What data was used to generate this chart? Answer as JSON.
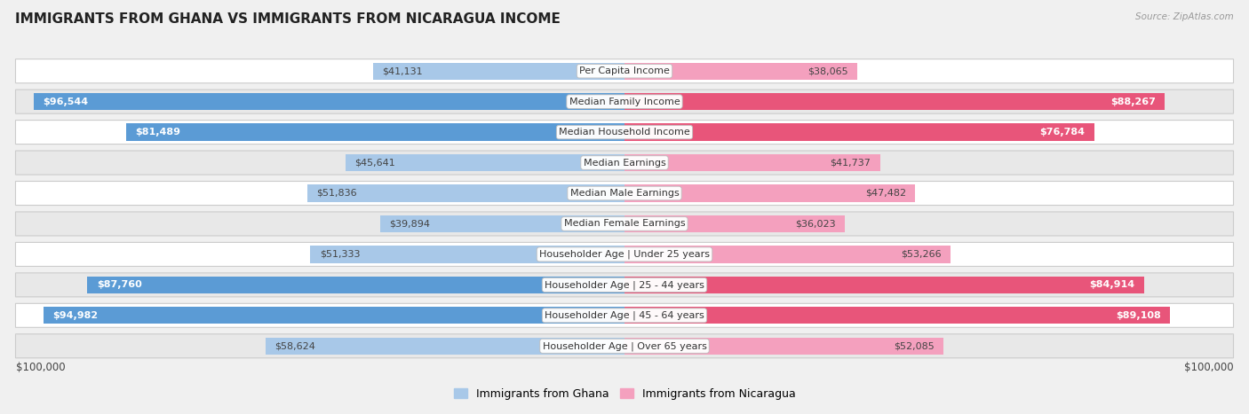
{
  "title": "IMMIGRANTS FROM GHANA VS IMMIGRANTS FROM NICARAGUA INCOME",
  "source": "Source: ZipAtlas.com",
  "categories": [
    "Per Capita Income",
    "Median Family Income",
    "Median Household Income",
    "Median Earnings",
    "Median Male Earnings",
    "Median Female Earnings",
    "Householder Age | Under 25 years",
    "Householder Age | 25 - 44 years",
    "Householder Age | 45 - 64 years",
    "Householder Age | Over 65 years"
  ],
  "ghana_values": [
    41131,
    96544,
    81489,
    45641,
    51836,
    39894,
    51333,
    87760,
    94982,
    58624
  ],
  "nicaragua_values": [
    38065,
    88267,
    76784,
    41737,
    47482,
    36023,
    53266,
    84914,
    89108,
    52085
  ],
  "ghana_labels": [
    "$41,131",
    "$96,544",
    "$81,489",
    "$45,641",
    "$51,836",
    "$39,894",
    "$51,333",
    "$87,760",
    "$94,982",
    "$58,624"
  ],
  "nicaragua_labels": [
    "$38,065",
    "$88,267",
    "$76,784",
    "$41,737",
    "$47,482",
    "$36,023",
    "$53,266",
    "$84,914",
    "$89,108",
    "$52,085"
  ],
  "max_value": 100000,
  "ghana_color_light": "#a8c8e8",
  "ghana_color_dark": "#5b9bd5",
  "nicaragua_color_light": "#f4a0be",
  "nicaragua_color_dark": "#e8557a",
  "label_color_light": "#444444",
  "label_color_dark": "#ffffff",
  "background_color": "#f0f0f0",
  "row_bg_odd": "#ffffff",
  "row_bg_even": "#e8e8e8",
  "legend_ghana": "Immigrants from Ghana",
  "legend_nicaragua": "Immigrants from Nicaragua",
  "x_tick_left": "$100,000",
  "x_tick_right": "$100,000",
  "dark_threshold": 70000
}
